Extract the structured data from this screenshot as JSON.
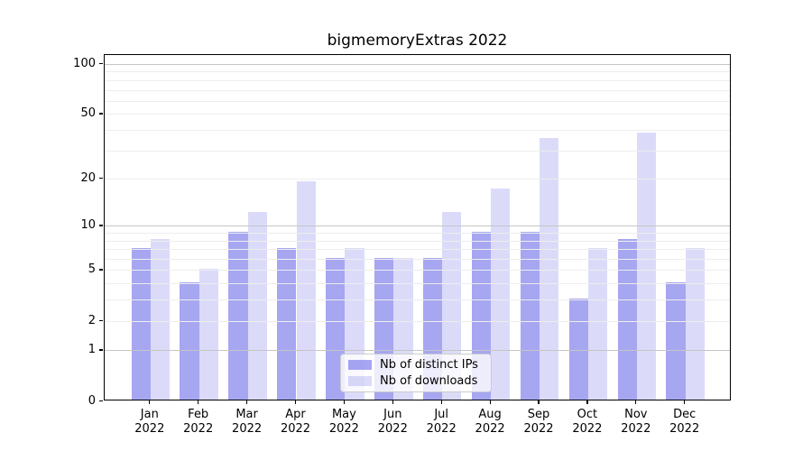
{
  "title": "bigmemoryExtras 2022",
  "chart_data": {
    "type": "bar",
    "title": "bigmemoryExtras 2022",
    "categories": [
      "Jan",
      "Feb",
      "Mar",
      "Apr",
      "May",
      "Jun",
      "Jul",
      "Aug",
      "Sep",
      "Oct",
      "Nov",
      "Dec"
    ],
    "x_year_label": "2022",
    "series": [
      {
        "name": "Nb of distinct IPs",
        "color_hex": "#a7a7f3",
        "color_rgba": "rgba(98,98,230,0.57)",
        "values": [
          7,
          4,
          9,
          7,
          6,
          6,
          6,
          9,
          9,
          3,
          8,
          4
        ]
      },
      {
        "name": "Nb of downloads",
        "color_hex": "#dcdcfa",
        "color_rgba": "rgba(98,98,230,0.23)",
        "values": [
          8,
          5,
          12,
          19,
          7,
          6,
          12,
          17,
          35,
          7,
          38,
          7
        ]
      }
    ],
    "xlabel": "",
    "ylabel": "",
    "yscale": "log1p",
    "ylim": [
      0,
      113
    ],
    "yticks": [
      0,
      1,
      2,
      5,
      10,
      20,
      50,
      100
    ],
    "major_gridlines": [
      1,
      10,
      100
    ],
    "minor_gridlines": [
      2,
      3,
      4,
      5,
      6,
      7,
      8,
      9,
      20,
      30,
      40,
      50,
      60,
      70,
      80,
      90
    ],
    "grid": true,
    "legend_position": "lower center"
  },
  "colors": {
    "bar_dark": "#a7a7f3",
    "bar_light": "#dcdcfa",
    "grid_major": "#c6c6c6",
    "grid_minor": "#ededed",
    "spine": "#000000",
    "background": "#ffffff"
  }
}
